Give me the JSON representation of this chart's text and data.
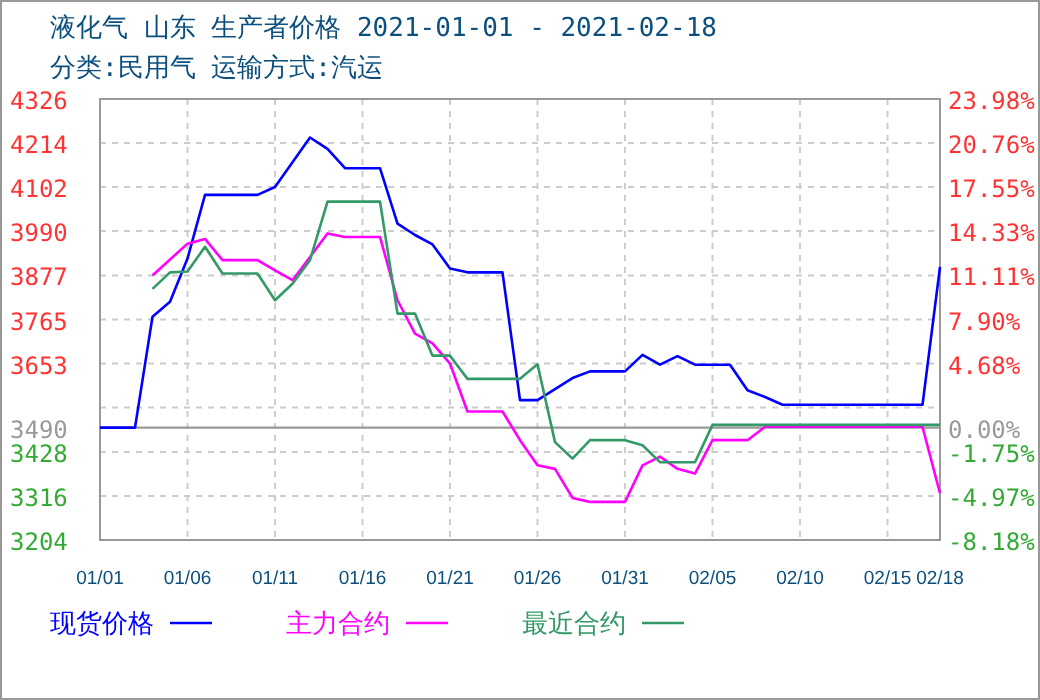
{
  "chart_data": {
    "type": "line",
    "title": "液化气 山东 生产者价格 2021-01-01 - 2021-02-18",
    "subtitle": "分类:民用气 运输方式:汽运",
    "xlim": [
      "2021-01-01",
      "2021-02-18"
    ],
    "xticks": [
      {
        "value": "2021-01-01",
        "label": "01/01"
      },
      {
        "value": "2021-01-06",
        "label": "01/06"
      },
      {
        "value": "2021-01-11",
        "label": "01/11"
      },
      {
        "value": "2021-01-16",
        "label": "01/16"
      },
      {
        "value": "2021-01-21",
        "label": "01/21"
      },
      {
        "value": "2021-01-26",
        "label": "01/26"
      },
      {
        "value": "2021-01-31",
        "label": "01/31"
      },
      {
        "value": "2021-02-05",
        "label": "02/05"
      },
      {
        "value": "2021-02-10",
        "label": "02/10"
      },
      {
        "value": "2021-02-15",
        "label": "02/15"
      },
      {
        "value": "2021-02-18",
        "label": "02/18"
      }
    ],
    "ylim": [
      3204,
      4326
    ],
    "yticks": [
      3204,
      3316,
      3428,
      {
        "value": 3541,
        "label": null
      },
      3653,
      3765,
      3877,
      3990,
      4102,
      4214,
      4326
    ],
    "y2lim": [
      -8.18,
      23.98
    ],
    "y2ticks": [
      {
        "value": -8.18,
        "label": "-8.18%"
      },
      {
        "value": -4.97,
        "label": "-4.97%"
      },
      {
        "value": -1.75,
        "label": "-1.75%"
      },
      {
        "value": 0,
        "label": "0.00%"
      },
      {
        "value": 4.68,
        "label": "4.68%"
      },
      {
        "value": 7.9,
        "label": "7.90%"
      },
      {
        "value": 11.11,
        "label": "11.11%"
      },
      {
        "value": 14.33,
        "label": "14.33%"
      },
      {
        "value": 17.55,
        "label": "17.55%"
      },
      {
        "value": 20.76,
        "label": "20.76%"
      },
      {
        "value": 23.98,
        "label": "23.98%"
      }
    ],
    "ref_lines": [
      {
        "axis": "y",
        "value": 3490,
        "label": "3490",
        "color": "#999999"
      }
    ],
    "grid": true,
    "legend": "bottom",
    "marker": "none",
    "line_style": "solid",
    "series": [
      {
        "name": "现货价格",
        "color": "#0000ff",
        "x": [
          "2021-01-01",
          "2021-01-03",
          "2021-01-04",
          "2021-01-05",
          "2021-01-06",
          "2021-01-07",
          "2021-01-10",
          "2021-01-11",
          "2021-01-13",
          "2021-01-14",
          "2021-01-15",
          "2021-01-17",
          "2021-01-18",
          "2021-01-19",
          "2021-01-20",
          "2021-01-21",
          "2021-01-22",
          "2021-01-24",
          "2021-01-25",
          "2021-01-26",
          "2021-01-28",
          "2021-01-29",
          "2021-01-31",
          "2021-02-01",
          "2021-02-02",
          "2021-02-03",
          "2021-02-04",
          "2021-02-06",
          "2021-02-07",
          "2021-02-08",
          "2021-02-09",
          "2021-02-17",
          "2021-02-18"
        ],
        "values": [
          3490,
          3490,
          3772,
          3810,
          3920,
          4082,
          4082,
          4102,
          4228,
          4199,
          4150,
          4150,
          4009,
          3980,
          3956,
          3895,
          3885,
          3885,
          3560,
          3560,
          3616,
          3633,
          3633,
          3675,
          3650,
          3672,
          3650,
          3650,
          3585,
          3568,
          3548,
          3548,
          3899
        ]
      },
      {
        "name": "主力合约",
        "color": "#ff00ff",
        "x": [
          "2021-01-04",
          "2021-01-06",
          "2021-01-07",
          "2021-01-08",
          "2021-01-10",
          "2021-01-11",
          "2021-01-12",
          "2021-01-13",
          "2021-01-14",
          "2021-01-15",
          "2021-01-17",
          "2021-01-18",
          "2021-01-19",
          "2021-01-20",
          "2021-01-21",
          "2021-01-22",
          "2021-01-24",
          "2021-01-25",
          "2021-01-26",
          "2021-01-27",
          "2021-01-28",
          "2021-01-29",
          "2021-01-31",
          "2021-02-01",
          "2021-02-02",
          "2021-02-03",
          "2021-02-04",
          "2021-02-05",
          "2021-02-07",
          "2021-02-08",
          "2021-02-17",
          "2021-02-18"
        ],
        "values": [
          3877,
          3958,
          3970,
          3916,
          3916,
          3890,
          3865,
          3924,
          3984,
          3975,
          3975,
          3814,
          3729,
          3704,
          3653,
          3531,
          3531,
          3458,
          3394,
          3385,
          3311,
          3301,
          3301,
          3394,
          3416,
          3385,
          3373,
          3458,
          3458,
          3492,
          3492,
          3323
        ]
      },
      {
        "name": "最近合约",
        "color": "#339966",
        "x": [
          "2021-01-04",
          "2021-01-05",
          "2021-01-06",
          "2021-01-07",
          "2021-01-08",
          "2021-01-10",
          "2021-01-11",
          "2021-01-12",
          "2021-01-13",
          "2021-01-14",
          "2021-01-17",
          "2021-01-18",
          "2021-01-19",
          "2021-01-20",
          "2021-01-21",
          "2021-01-22",
          "2021-01-25",
          "2021-01-26",
          "2021-01-27",
          "2021-01-28",
          "2021-01-29",
          "2021-01-31",
          "2021-02-01",
          "2021-02-02",
          "2021-02-04",
          "2021-02-05",
          "2021-02-18"
        ],
        "values": [
          3843,
          3885,
          3887,
          3950,
          3882,
          3882,
          3814,
          3856,
          3916,
          4065,
          4065,
          3780,
          3780,
          3673,
          3673,
          3614,
          3614,
          3651,
          3453,
          3411,
          3458,
          3458,
          3445,
          3402,
          3402,
          3497,
          3497
        ]
      }
    ]
  }
}
